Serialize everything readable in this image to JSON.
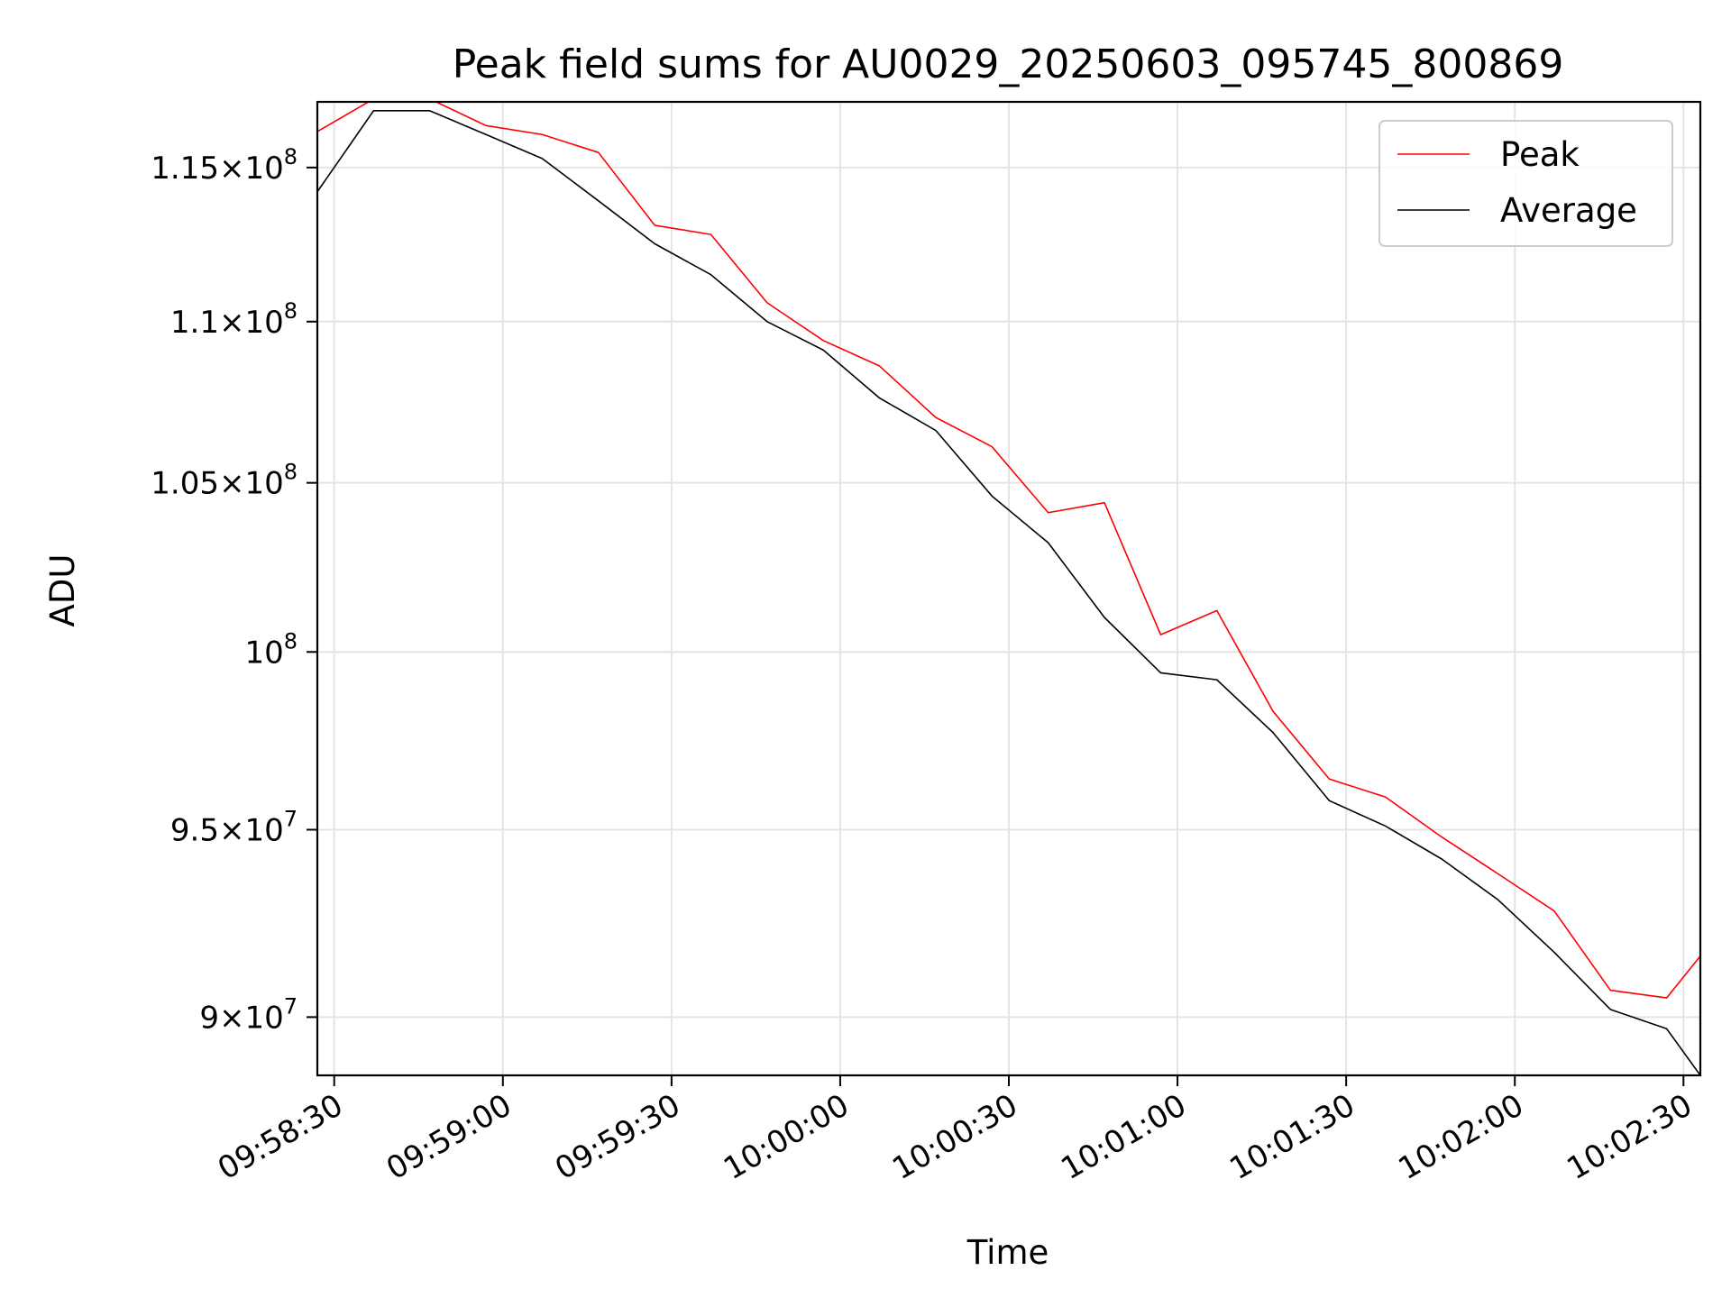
{
  "chart_data": {
    "type": "line",
    "title": "Peak field sums for AU0029_20250603_095745_800869",
    "xlabel": "Time",
    "ylabel": "ADU",
    "yscale": "log",
    "grid": true,
    "legend_position": "top-right",
    "x_ticks": [
      "09:58:30",
      "09:59:00",
      "09:59:30",
      "10:00:00",
      "10:00:30",
      "10:01:00",
      "10:01:30",
      "10:02:00",
      "10:02:30"
    ],
    "y_ticks": [
      {
        "value": 90000000,
        "mantissa": "9",
        "exp": "7"
      },
      {
        "value": 95000000,
        "mantissa": "9.5",
        "exp": "7"
      },
      {
        "value": 100000000,
        "mantissa": "",
        "exp": "8"
      },
      {
        "value": 105000000,
        "mantissa": "1.05",
        "exp": "8"
      },
      {
        "value": 110000000,
        "mantissa": "1.1",
        "exp": "8"
      },
      {
        "value": 115000000,
        "mantissa": "1.15",
        "exp": "8"
      }
    ],
    "xlim": [
      "09:58:27",
      "10:02:33"
    ],
    "ylim": [
      88500000,
      117200000
    ],
    "x": [
      "09:58:27",
      "09:58:37",
      "09:58:47",
      "09:58:57",
      "09:59:07",
      "09:59:17",
      "09:59:27",
      "09:59:37",
      "09:59:47",
      "09:59:57",
      "10:00:07",
      "10:00:17",
      "10:00:27",
      "10:00:37",
      "10:00:47",
      "10:00:57",
      "10:01:07",
      "10:01:17",
      "10:01:27",
      "10:01:37",
      "10:01:47",
      "10:01:57",
      "10:02:07",
      "10:02:17",
      "10:02:27",
      "10:02:33"
    ],
    "series": [
      {
        "name": "Peak",
        "color": "#ff0000",
        "values": [
          116200000,
          117300000,
          117300000,
          116400000,
          116100000,
          115500000,
          113100000,
          112800000,
          110600000,
          109400000,
          108600000,
          107000000,
          106100000,
          104100000,
          104400000,
          100500000,
          101200000,
          98300000,
          96400000,
          95900000,
          94800000,
          93800000,
          92800000,
          90700000,
          90500000,
          91600000
        ]
      },
      {
        "name": "Average",
        "color": "#000000",
        "values": [
          114200000,
          116900000,
          116900000,
          116100000,
          115300000,
          113900000,
          112500000,
          111500000,
          110000000,
          109100000,
          107600000,
          106600000,
          104600000,
          103200000,
          101000000,
          99400000,
          99200000,
          97700000,
          95800000,
          95100000,
          94200000,
          93100000,
          91700000,
          90200000,
          89700000,
          88500000
        ]
      }
    ]
  }
}
